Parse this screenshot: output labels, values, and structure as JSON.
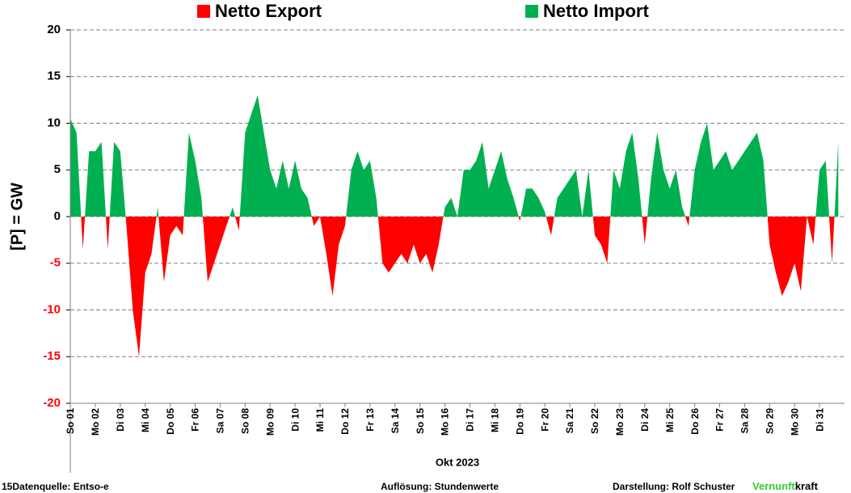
{
  "chart_data": {
    "type": "area",
    "legend": [
      {
        "name": "Netto Export",
        "color": "#ff0000"
      },
      {
        "name": "Netto Import",
        "color": "#00b050"
      }
    ],
    "y_label": "[P] = GW",
    "x_label": "Okt 2023",
    "categories": [
      "So 01",
      "Mo 02",
      "Di 03",
      "Mi 04",
      "Do 05",
      "Fr 06",
      "Sa 07",
      "So 08",
      "Mo 09",
      "Di 10",
      "Mi 11",
      "Do 12",
      "Fr 13",
      "Sa 14",
      "So 15",
      "Mo 16",
      "Di 17",
      "Mi 18",
      "Do 19",
      "Fr 20",
      "Sa 21",
      "So 22",
      "Mo 23",
      "Di 24",
      "Mi 25",
      "Do 26",
      "Fr 27",
      "Sa 28",
      "So 29",
      "Mo 30",
      "Di 31"
    ],
    "values": [
      [
        10.5,
        9,
        -3.5,
        7
      ],
      [
        7,
        8,
        -3.5,
        8
      ],
      [
        7,
        -1,
        -10,
        -15
      ],
      [
        -6,
        -4,
        1,
        -7
      ],
      [
        -2,
        -1,
        -2,
        9
      ],
      [
        6,
        2,
        -7,
        -5
      ],
      [
        -3,
        -1,
        1,
        -1.5
      ],
      [
        9,
        11,
        13,
        9
      ],
      [
        5,
        3,
        6,
        3
      ],
      [
        6,
        3,
        2,
        -1
      ],
      [
        0,
        -4,
        -8.5,
        -3
      ],
      [
        -1,
        5,
        7,
        5
      ],
      [
        6,
        2,
        -5,
        -6
      ],
      [
        -5,
        -4,
        -5,
        -3
      ],
      [
        -5,
        -4,
        -6,
        -3
      ],
      [
        1,
        2,
        0,
        5
      ],
      [
        5,
        6,
        8,
        3
      ],
      [
        5,
        7,
        4,
        2
      ],
      [
        -0.5,
        3,
        3,
        2
      ],
      [
        0.5,
        -2,
        2,
        3
      ],
      [
        4,
        5,
        0,
        5
      ],
      [
        -2,
        -3,
        -5,
        5
      ],
      [
        3,
        7,
        9,
        4
      ],
      [
        -3,
        4,
        9,
        5
      ],
      [
        3,
        5,
        1,
        -1
      ],
      [
        5,
        8,
        10,
        5
      ],
      [
        6,
        7,
        5,
        6
      ],
      [
        7,
        8,
        9,
        6
      ],
      [
        -3,
        -6,
        -8.5,
        -7
      ],
      [
        -5,
        -8,
        0,
        -3
      ],
      [
        5,
        6,
        -5,
        8
      ]
    ],
    "ylim": [
      -20,
      20
    ],
    "yticks": [
      -20,
      -15,
      -10,
      -5,
      0,
      5,
      10,
      15,
      20
    ],
    "negative_tick_color": "#ff0000",
    "grid": true,
    "footer": {
      "source": "15Datenquelle: Entso-e",
      "resolution": "Auflösung: Stundenwerte",
      "author": "Darstellung:  Rolf Schuster",
      "brand_a": "Vernunft",
      "brand_b": "kraft"
    }
  }
}
